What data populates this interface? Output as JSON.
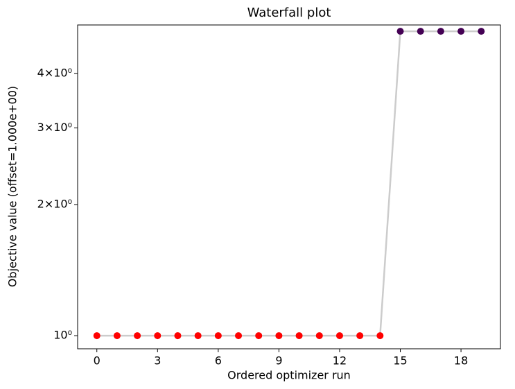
{
  "chart_data": {
    "type": "line",
    "title": "Waterfall plot",
    "xlabel": "Ordered optimizer run",
    "ylabel": "Objective value (offset=1.000e+00)",
    "x": [
      0,
      1,
      2,
      3,
      4,
      5,
      6,
      7,
      8,
      9,
      10,
      11,
      12,
      13,
      14,
      15,
      16,
      17,
      18,
      19
    ],
    "series": [
      {
        "color": "#cccccc",
        "values": [
          1,
          1,
          1,
          1,
          1,
          1,
          1,
          1,
          1,
          1,
          1,
          1,
          1,
          1,
          1,
          5,
          5,
          5,
          5,
          5
        ],
        "point_colors": [
          "#ff0000",
          "#ff0000",
          "#ff0000",
          "#ff0000",
          "#ff0000",
          "#ff0000",
          "#ff0000",
          "#ff0000",
          "#ff0000",
          "#ff0000",
          "#ff0000",
          "#ff0000",
          "#ff0000",
          "#ff0000",
          "#ff0000",
          "#440154",
          "#440154",
          "#440154",
          "#440154",
          "#440154"
        ]
      }
    ],
    "xlim": [
      -0.95,
      19.95
    ],
    "xticks": [
      0,
      3,
      6,
      9,
      12,
      15,
      18
    ],
    "ylim": [
      0.933,
      5.17
    ],
    "log_y": true,
    "yticks": [
      {
        "value": 1,
        "label": "10⁰"
      },
      {
        "value": 2,
        "label": "2×10⁰"
      },
      {
        "value": 3,
        "label": "3×10⁰"
      },
      {
        "value": 4,
        "label": "4×10⁰"
      }
    ]
  }
}
